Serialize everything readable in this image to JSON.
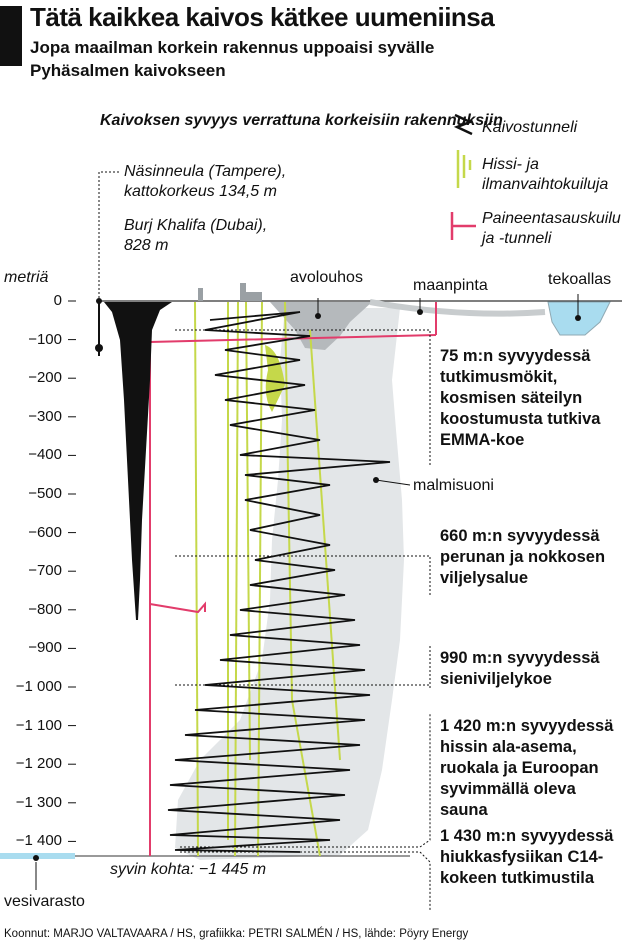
{
  "header": {
    "title": "Tätä kaikkea kaivos kätkee uumeniinsa",
    "subtitle": "Jopa maailman korkein rakennus uppoaisi syvälle Pyhäsalmen kaivokseen"
  },
  "comparison_heading": "Kaivoksen syvyys verrattuna korkeisiin rakennuksiin",
  "buildings": {
    "nasinneula": "Näsinneula (Tampere), kattokorkeus 134,5 m",
    "burj": "Burj Khalifa (Dubai), 828 m"
  },
  "legend": {
    "tunnel": "Kaivostunneli",
    "shaft": "Hissi- ja ilmanvaihtokuiluja",
    "pressure": "Paineentasauskuilu ja -tunneli"
  },
  "axis": {
    "unit_label": "metriä",
    "ticks": [
      "0",
      "−100",
      "−200",
      "−300",
      "−400",
      "−500",
      "−600",
      "−700",
      "−800",
      "−900",
      "−1 000",
      "−1 100",
      "−1 200",
      "−1 300",
      "−1 400"
    ]
  },
  "labels": {
    "avolouhos": "avolouhos",
    "maanpinta": "maanpinta",
    "tekoallas": "tekoallas",
    "malmisuoni": "malmisuoni",
    "syvin": "syvin kohta: −1 445 m",
    "vesivarasto": "vesivarasto"
  },
  "notes": {
    "n75": "75 m:n syvyydessä tutkimusmökit, kosmisen säteilyn koostumusta tutkiva EMMA-koe",
    "n660": "660 m:n syvyydessä perunan ja nokkosen viljelysalue",
    "n990": "990 m:n syvyydessä sieniviljelykoe",
    "n1420": "1 420 m:n syvyydessä hissin ala-asema, ruokala ja Euroopan syvimmällä oleva sauna",
    "n1430": "1 430 m:n syvyydessä hiukkasfysiikan C14-kokeen tutkimustila"
  },
  "credits": "Koonnut: MARJO VALTAVAARA / HS, grafiikka: PETRI SALMÉN / HS, lähde: Pöyry Energy",
  "colors": {
    "tunnel": "#111111",
    "shaft": "#c5d84a",
    "pressure": "#e23c6b",
    "ore": "#e3e6e8",
    "water": "#a9dcef"
  }
}
